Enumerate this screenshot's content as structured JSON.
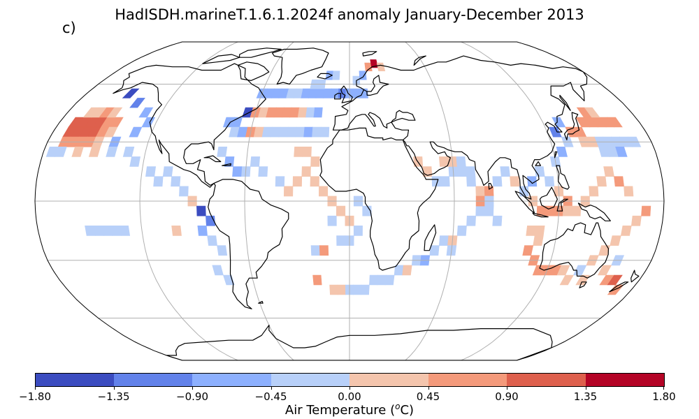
{
  "title": "HadISDH.marineT.1.6.1.2024f anomaly January-December 2013",
  "panel_label": "c)",
  "colorbar": {
    "label_prefix": "Air Temperature (",
    "label_sup": "o",
    "label_suffix": "C)",
    "ticks": [
      "−1.80",
      "−1.35",
      "−0.90",
      "−0.45",
      "0.00",
      "0.45",
      "0.90",
      "1.35",
      "1.80"
    ],
    "bins": [
      {
        "min": -1.8,
        "max": -1.35,
        "color": "#3b4cc0"
      },
      {
        "min": -1.35,
        "max": -0.9,
        "color": "#6282ea"
      },
      {
        "min": -0.9,
        "max": -0.45,
        "color": "#8db0fe"
      },
      {
        "min": -0.45,
        "max": 0.0,
        "color": "#b8d0f9"
      },
      {
        "min": 0.0,
        "max": 0.45,
        "color": "#f4c5ad"
      },
      {
        "min": 0.45,
        "max": 0.9,
        "color": "#f49a7b"
      },
      {
        "min": 0.9,
        "max": 1.35,
        "color": "#de604d"
      },
      {
        "min": 1.35,
        "max": 1.8,
        "color": "#b40426"
      }
    ]
  },
  "map": {
    "projection": "Robinson",
    "grid": true,
    "gridline_color": "#b0b0b0",
    "coastline_color": "#000000"
  },
  "chart_data": {
    "type": "heatmap",
    "variable": "Air Temperature anomaly",
    "units": "°C",
    "period": "January-December 2013",
    "vmin": -1.8,
    "vmax": 1.8,
    "cells_lonlat_anomaly": [
      [
        -170,
        40,
        1.0
      ],
      [
        -165,
        40,
        1.1
      ],
      [
        -160,
        40,
        1.2
      ],
      [
        -155,
        40,
        1.1
      ],
      [
        -150,
        40,
        0.7
      ],
      [
        -145,
        40,
        0.6
      ],
      [
        -170,
        35,
        0.9
      ],
      [
        -165,
        35,
        1.0
      ],
      [
        -160,
        35,
        1.2
      ],
      [
        -155,
        35,
        0.9
      ],
      [
        -150,
        35,
        0.6
      ],
      [
        -145,
        35,
        0.4
      ],
      [
        -170,
        30,
        0.5
      ],
      [
        -165,
        30,
        0.6
      ],
      [
        -160,
        30,
        0.7
      ],
      [
        -155,
        30,
        0.5
      ],
      [
        -150,
        30,
        0.3
      ],
      [
        -140,
        30,
        -0.5
      ],
      [
        -165,
        45,
        0.3
      ],
      [
        -160,
        45,
        0.4
      ],
      [
        -155,
        45,
        0.5
      ],
      [
        -150,
        45,
        0.3
      ],
      [
        -140,
        50,
        -1.0
      ],
      [
        -150,
        55,
        -1.5
      ],
      [
        -175,
        25,
        -0.3
      ],
      [
        -170,
        25,
        -0.2
      ],
      [
        -160,
        25,
        0.2
      ],
      [
        -150,
        25,
        0.2
      ],
      [
        -140,
        25,
        -0.3
      ],
      [
        -130,
        25,
        -0.4
      ],
      [
        -130,
        35,
        -0.6
      ],
      [
        -125,
        40,
        -0.8
      ],
      [
        -130,
        45,
        -0.6
      ],
      [
        -125,
        20,
        -0.3
      ],
      [
        -115,
        15,
        -0.2
      ],
      [
        -110,
        10,
        -0.2
      ],
      [
        -105,
        15,
        -0.3
      ],
      [
        -100,
        10,
        -0.4
      ],
      [
        -95,
        5,
        -0.3
      ],
      [
        -90,
        0,
        0.2
      ],
      [
        -85,
        -5,
        -1.4
      ],
      [
        -80,
        -10,
        -1.2
      ],
      [
        -85,
        -15,
        -0.5
      ],
      [
        -80,
        -20,
        -0.4
      ],
      [
        -75,
        -25,
        -0.3
      ],
      [
        -80,
        -35,
        -0.3
      ],
      [
        -75,
        -40,
        -0.2
      ],
      [
        -100,
        -15,
        0.3
      ],
      [
        -150,
        -15,
        -0.3
      ],
      [
        -145,
        -15,
        -0.3
      ],
      [
        -140,
        -15,
        -0.3
      ],
      [
        -135,
        -15,
        -0.3
      ],
      [
        -130,
        -15,
        -0.3
      ],
      [
        -75,
        40,
        -0.7
      ],
      [
        -70,
        40,
        -0.5
      ],
      [
        -65,
        45,
        -1.5
      ],
      [
        -60,
        45,
        0.5
      ],
      [
        -55,
        45,
        0.3
      ],
      [
        -50,
        45,
        0.6
      ],
      [
        -45,
        45,
        0.5
      ],
      [
        -40,
        45,
        0.7
      ],
      [
        -35,
        45,
        0.5
      ],
      [
        -30,
        45,
        0.3
      ],
      [
        -25,
        45,
        -0.3
      ],
      [
        -20,
        45,
        -0.5
      ],
      [
        -70,
        35,
        -0.4
      ],
      [
        -65,
        35,
        -0.5
      ],
      [
        -60,
        35,
        0.5
      ],
      [
        -55,
        35,
        0.3
      ],
      [
        -50,
        35,
        -0.4
      ],
      [
        -45,
        35,
        -0.4
      ],
      [
        -40,
        35,
        -0.3
      ],
      [
        -35,
        35,
        -0.3
      ],
      [
        -30,
        35,
        -0.4
      ],
      [
        -25,
        35,
        -0.5
      ],
      [
        -20,
        35,
        -0.3
      ],
      [
        -15,
        35,
        -0.2
      ],
      [
        -60,
        55,
        -0.7
      ],
      [
        -55,
        55,
        -0.6
      ],
      [
        -50,
        55,
        -0.5
      ],
      [
        -45,
        55,
        -0.5
      ],
      [
        -40,
        55,
        -0.4
      ],
      [
        -35,
        55,
        -0.3
      ],
      [
        -30,
        55,
        -0.5
      ],
      [
        -25,
        55,
        -0.7
      ],
      [
        -20,
        55,
        -0.6
      ],
      [
        -15,
        55,
        -0.8
      ],
      [
        -10,
        55,
        -0.9
      ],
      [
        -5,
        55,
        -1.0
      ],
      [
        0,
        55,
        -0.7
      ],
      [
        5,
        55,
        -0.6
      ],
      [
        10,
        55,
        -0.5
      ],
      [
        -25,
        60,
        -0.4
      ],
      [
        -20,
        60,
        -0.3
      ],
      [
        5,
        62,
        -0.4
      ],
      [
        10,
        65,
        -0.5
      ],
      [
        15,
        70,
        0.5
      ],
      [
        20,
        72,
        1.5
      ],
      [
        25,
        70,
        0.4
      ],
      [
        -15,
        65,
        -0.5
      ],
      [
        -10,
        65,
        -0.3
      ],
      [
        -30,
        25,
        0.3
      ],
      [
        -25,
        25,
        0.3
      ],
      [
        -20,
        20,
        0.2
      ],
      [
        -25,
        15,
        0.4
      ],
      [
        -20,
        10,
        0.4
      ],
      [
        -15,
        5,
        0.3
      ],
      [
        -10,
        0,
        0.3
      ],
      [
        -5,
        -5,
        0.3
      ],
      [
        0,
        -10,
        0.2
      ],
      [
        -30,
        10,
        0.3
      ],
      [
        -35,
        5,
        0.2
      ],
      [
        -40,
        10,
        -0.3
      ],
      [
        -50,
        15,
        -0.3
      ],
      [
        -55,
        20,
        -0.4
      ],
      [
        -60,
        15,
        -0.4
      ],
      [
        -65,
        15,
        -0.6
      ],
      [
        -70,
        20,
        -0.5
      ],
      [
        -75,
        25,
        -0.4
      ],
      [
        -20,
        -25,
        -0.3
      ],
      [
        -15,
        -25,
        0.5
      ],
      [
        -20,
        -40,
        0.7
      ],
      [
        -10,
        -45,
        0.3
      ],
      [
        -5,
        -45,
        0.4
      ],
      [
        0,
        -45,
        -0.3
      ],
      [
        5,
        -45,
        -0.2
      ],
      [
        10,
        -45,
        -0.3
      ],
      [
        15,
        -40,
        -0.4
      ],
      [
        20,
        -40,
        -0.4
      ],
      [
        25,
        -40,
        -0.3
      ],
      [
        30,
        -35,
        -0.3
      ],
      [
        35,
        -35,
        0.3
      ],
      [
        40,
        -30,
        -0.4
      ],
      [
        45,
        -30,
        -0.5
      ],
      [
        50,
        -25,
        -0.4
      ],
      [
        55,
        -20,
        -0.3
      ],
      [
        60,
        -20,
        0.3
      ],
      [
        60,
        -25,
        -0.4
      ],
      [
        65,
        -15,
        -0.3
      ],
      [
        70,
        -10,
        -0.4
      ],
      [
        75,
        -5,
        -0.3
      ],
      [
        80,
        -5,
        -0.3
      ],
      [
        85,
        -10,
        -0.2
      ],
      [
        -10,
        -10,
        -0.3
      ],
      [
        -5,
        -20,
        -0.3
      ],
      [
        0,
        -20,
        -0.2
      ],
      [
        5,
        -15,
        -0.3
      ],
      [
        10,
        -5,
        -0.3
      ],
      [
        5,
        0,
        -0.3
      ],
      [
        40,
        20,
        0.3
      ],
      [
        45,
        15,
        0.3
      ],
      [
        50,
        10,
        -0.3
      ],
      [
        55,
        10,
        -0.3
      ],
      [
        60,
        15,
        -0.3
      ],
      [
        65,
        15,
        -0.3
      ],
      [
        70,
        10,
        -0.2
      ],
      [
        75,
        5,
        0.4
      ],
      [
        80,
        5,
        0.5
      ],
      [
        85,
        10,
        -0.3
      ],
      [
        90,
        15,
        -0.3
      ],
      [
        95,
        10,
        0.3
      ],
      [
        55,
        20,
        0.2
      ],
      [
        60,
        20,
        0.3
      ],
      [
        65,
        20,
        -0.3
      ],
      [
        70,
        15,
        -0.3
      ],
      [
        75,
        0,
        0.6
      ],
      [
        80,
        0,
        -0.3
      ],
      [
        100,
        5,
        -0.4
      ],
      [
        105,
        10,
        -0.5
      ],
      [
        110,
        15,
        -0.4
      ],
      [
        115,
        10,
        -0.3
      ],
      [
        120,
        5,
        0.4
      ],
      [
        125,
        0,
        0.5
      ],
      [
        105,
        0,
        0.4
      ],
      [
        110,
        -5,
        0.6
      ],
      [
        115,
        -5,
        0.5
      ],
      [
        120,
        -5,
        0.6
      ],
      [
        125,
        -5,
        0.4
      ],
      [
        130,
        -5,
        0.3
      ],
      [
        135,
        0,
        0.4
      ],
      [
        140,
        5,
        0.3
      ],
      [
        145,
        10,
        0.4
      ],
      [
        150,
        15,
        0.3
      ],
      [
        155,
        10,
        0.5
      ],
      [
        160,
        5,
        0.4
      ],
      [
        120,
        20,
        -0.4
      ],
      [
        125,
        25,
        -0.5
      ],
      [
        130,
        30,
        -0.4
      ],
      [
        135,
        35,
        0.5
      ],
      [
        140,
        35,
        0.6
      ],
      [
        145,
        40,
        0.7
      ],
      [
        150,
        40,
        0.8
      ],
      [
        155,
        40,
        0.7
      ],
      [
        160,
        40,
        0.6
      ],
      [
        165,
        40,
        0.5
      ],
      [
        150,
        45,
        0.5
      ],
      [
        155,
        45,
        0.4
      ],
      [
        125,
        35,
        -1.2
      ],
      [
        130,
        40,
        -0.8
      ],
      [
        140,
        30,
        0.3
      ],
      [
        145,
        30,
        0.2
      ],
      [
        150,
        30,
        -0.3
      ],
      [
        155,
        30,
        -0.3
      ],
      [
        160,
        30,
        -0.4
      ],
      [
        165,
        30,
        -0.3
      ],
      [
        170,
        30,
        -0.3
      ],
      [
        150,
        25,
        -0.3
      ],
      [
        155,
        25,
        -0.4
      ],
      [
        160,
        25,
        -0.5
      ],
      [
        105,
        -15,
        0.3
      ],
      [
        110,
        -15,
        0.3
      ],
      [
        110,
        -20,
        0.4
      ],
      [
        105,
        -25,
        0.5
      ],
      [
        110,
        -30,
        0.5
      ],
      [
        115,
        -35,
        0.6
      ],
      [
        120,
        -35,
        0.6
      ],
      [
        125,
        -35,
        0.5
      ],
      [
        130,
        -35,
        0.4
      ],
      [
        140,
        -35,
        -0.3
      ],
      [
        145,
        -30,
        0.3
      ],
      [
        150,
        -25,
        0.4
      ],
      [
        155,
        -20,
        0.3
      ],
      [
        160,
        -15,
        0.3
      ],
      [
        165,
        -10,
        0.4
      ],
      [
        170,
        -5,
        0.5
      ],
      [
        160,
        -30,
        -0.3
      ],
      [
        155,
        -35,
        0.4
      ],
      [
        160,
        -40,
        0.8
      ],
      [
        165,
        -40,
        0.9
      ],
      [
        170,
        -45,
        0.7
      ],
      [
        145,
        -40,
        0.3
      ],
      [
        135,
        -40,
        0.3
      ]
    ]
  }
}
